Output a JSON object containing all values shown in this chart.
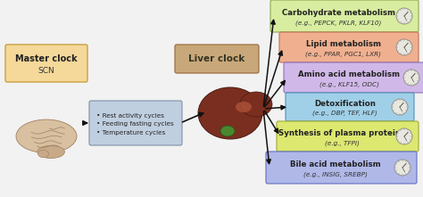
{
  "bg_color": "#f2f2f2",
  "master_clock_label1": "Master clock",
  "master_clock_label2": "SCN",
  "master_clock_box_color": "#f5d99a",
  "master_clock_box_edge": "#c8a040",
  "liver_clock_label": "Liver clock",
  "liver_clock_box_color": "#c8a87a",
  "liver_clock_box_edge": "#a07040",
  "cycles_text": "• Rest activity cycles\n• Feeding fasting cycles\n• Temperature cycles",
  "cycles_box_color": "#c0cfe0",
  "cycles_box_edge": "#8090a8",
  "output_boxes": [
    {
      "title": "Carbohydrate metabolism",
      "subtitle": "(e.g., PEPCK, PKLR, KLF10)",
      "color": "#d8eda0",
      "edge": "#90aa50"
    },
    {
      "title": "Lipid metabolism",
      "subtitle": "(e.g., PPAR, PGC1, LXR)",
      "color": "#f0b090",
      "edge": "#c07050"
    },
    {
      "title": "Amino acid metabolism",
      "subtitle": "(e.g., KLF15, ODC)",
      "color": "#d0b8e8",
      "edge": "#9070b8"
    },
    {
      "title": "Detoxification",
      "subtitle": "(e.g., DBP, TEF, HLF)",
      "color": "#a0d0e8",
      "edge": "#5090b8"
    },
    {
      "title": "Synthesis of plasma proteins",
      "subtitle": "(e.g., TFPI)",
      "color": "#dce870",
      "edge": "#a0aa30"
    },
    {
      "title": "Bile acid metabolism",
      "subtitle": "(e.g., INSIG, SREBP)",
      "color": "#b0b8e8",
      "edge": "#6070c0"
    }
  ],
  "arrow_color": "#111111",
  "brain_color": "#d8c0a0",
  "brain_fold_color": "#a08060",
  "liver_color": "#7a2e20",
  "liver_highlight": "#c06040",
  "gallbladder_color": "#4a8830"
}
